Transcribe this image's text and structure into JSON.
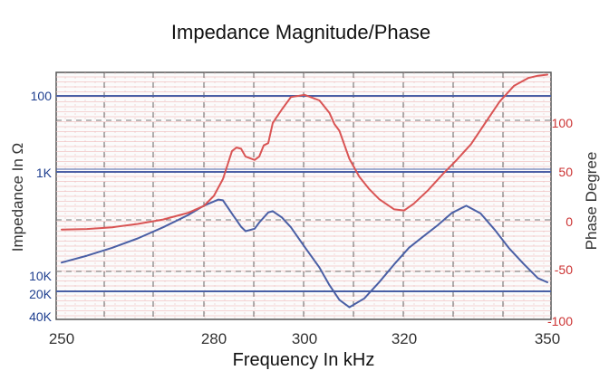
{
  "chart_data": {
    "type": "line",
    "title": "Impedance Magnitude/Phase",
    "xlabel": "Frequency In kHz",
    "ylabel_left": "Impedance In Ω",
    "ylabel_right": "Phase Degree",
    "xlim": [
      250,
      350
    ],
    "x_ticks": [
      "250",
      "280",
      "300",
      "320",
      "350"
    ],
    "left_tick_labels": [
      "100",
      "1K",
      "10K",
      "20K",
      "40K"
    ],
    "right_tick_labels": [
      "100",
      "50",
      "0",
      "-50",
      "-100"
    ],
    "right_ylim": [
      -100,
      120
    ],
    "grid": true,
    "series": [
      {
        "role": "impedance",
        "color": "#4a5fa5",
        "x": [
          250,
          255,
          260,
          265,
          270,
          275,
          278,
          281,
          282,
          284,
          286,
          287,
          289,
          290,
          292,
          293,
          295,
          297,
          300,
          303,
          305,
          307,
          309,
          312,
          315,
          318,
          321,
          324,
          327,
          330,
          333,
          336,
          339,
          342,
          345,
          348,
          350
        ],
        "y_position": [
          0.77,
          0.742,
          0.71,
          0.672,
          0.627,
          0.577,
          0.54,
          0.515,
          0.518,
          0.572,
          0.625,
          0.643,
          0.633,
          0.608,
          0.567,
          0.562,
          0.587,
          0.627,
          0.706,
          0.79,
          0.861,
          0.921,
          0.951,
          0.915,
          0.849,
          0.777,
          0.71,
          0.664,
          0.619,
          0.569,
          0.54,
          0.571,
          0.638,
          0.713,
          0.775,
          0.833,
          0.85
        ]
      },
      {
        "role": "phase",
        "color": "#d95454",
        "x": [
          250,
          255,
          260,
          265,
          270,
          275,
          278,
          280,
          282,
          284,
          285,
          286,
          287,
          289,
          290,
          291,
          292,
          293,
          295,
          297,
          300,
          303,
          305,
          306,
          307,
          309,
          311,
          313,
          315,
          318,
          320,
          322,
          325,
          328,
          331,
          334,
          337,
          340,
          343,
          346,
          348,
          350
        ],
        "y": [
          -20,
          -19.5,
          -18,
          -15,
          -11,
          -5,
          1,
          10,
          25,
          50,
          53,
          52,
          45,
          42,
          45,
          55,
          57,
          75,
          87,
          98,
          100,
          95,
          84,
          74,
          68,
          43,
          27,
          16,
          7,
          -2,
          -3,
          3,
          15,
          29,
          42,
          56,
          75,
          94,
          108,
          115,
          117,
          118
        ]
      }
    ]
  }
}
